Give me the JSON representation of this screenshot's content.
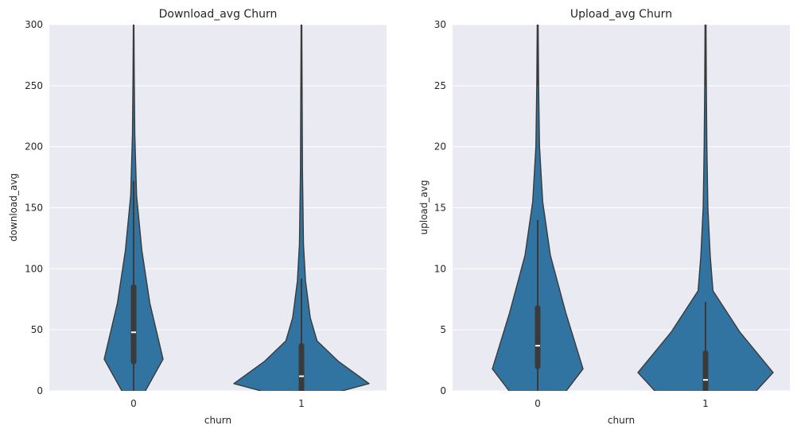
{
  "chart_data": [
    {
      "type": "violin",
      "title": "Download_avg Churn",
      "xlabel": "churn",
      "ylabel": "download_avg",
      "categories": [
        "0",
        "1"
      ],
      "ylim": [
        0,
        300
      ],
      "yticks": [
        "0",
        "50",
        "100",
        "150",
        "200",
        "250",
        "300"
      ],
      "grid": true,
      "color": "#3274a1",
      "violins": [
        {
          "category": "0",
          "median": 48,
          "q1": 24,
          "q3": 85,
          "whisker_low": 0,
          "whisker_high": 172,
          "density": [
            [
              0,
              0.4
            ],
            [
              26,
              1.0
            ],
            [
              72,
              0.55
            ],
            [
              115,
              0.28
            ],
            [
              160,
              0.1
            ],
            [
              210,
              0.04
            ],
            [
              260,
              0.02
            ],
            [
              300,
              0.01
            ]
          ]
        },
        {
          "category": "1",
          "median": 12,
          "q1": 0,
          "q3": 37,
          "whisker_low": 0,
          "whisker_high": 92,
          "density": [
            [
              0,
              0.6
            ],
            [
              6,
              1.0
            ],
            [
              24,
              0.55
            ],
            [
              41,
              0.23
            ],
            [
              60,
              0.13
            ],
            [
              90,
              0.06
            ],
            [
              120,
              0.03
            ],
            [
              180,
              0.015
            ],
            [
              240,
              0.01
            ],
            [
              300,
              0.005
            ]
          ]
        }
      ]
    },
    {
      "type": "violin",
      "title": "Upload_avg  Churn",
      "xlabel": "churn",
      "ylabel": "upload_avg",
      "categories": [
        "0",
        "1"
      ],
      "ylim": [
        0,
        30
      ],
      "yticks": [
        "0",
        "5",
        "10",
        "15",
        "20",
        "25",
        "30"
      ],
      "grid": true,
      "color": "#3274a1",
      "violins": [
        {
          "category": "0",
          "median": 3.7,
          "q1": 2.0,
          "q3": 6.8,
          "whisker_low": 0,
          "whisker_high": 14,
          "density": [
            [
              0,
              0.63
            ],
            [
              1.8,
              1.0
            ],
            [
              6.4,
              0.62
            ],
            [
              11.1,
              0.28
            ],
            [
              15.5,
              0.11
            ],
            [
              20,
              0.04
            ],
            [
              25,
              0.02
            ],
            [
              30,
              0.01
            ]
          ]
        },
        {
          "category": "1",
          "median": 0.9,
          "q1": 0,
          "q3": 3.1,
          "whisker_low": 0,
          "whisker_high": 7.3,
          "density": [
            [
              0,
              0.75
            ],
            [
              1.5,
              1.0
            ],
            [
              4.8,
              0.51
            ],
            [
              8.2,
              0.11
            ],
            [
              11,
              0.07
            ],
            [
              15,
              0.035
            ],
            [
              20,
              0.02
            ],
            [
              25,
              0.012
            ],
            [
              30,
              0.007
            ]
          ]
        }
      ]
    }
  ]
}
